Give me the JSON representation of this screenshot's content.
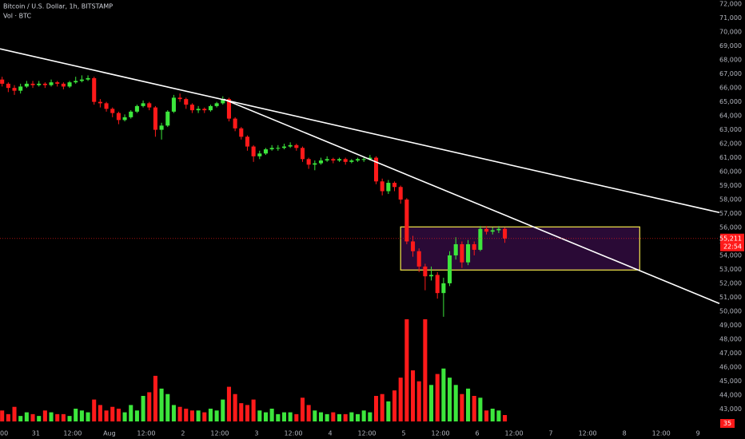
{
  "chart_data": {
    "type": "candlestick",
    "title": "Bitcoin / U.S. Dollar, 1h, BITSTAMP",
    "subtitle": "Vol · BTC",
    "up_color": "#3ce63c",
    "down_color": "#ff1a1a",
    "x": [
      13,
      15,
      17,
      19,
      21,
      23,
      25,
      27,
      29,
      31,
      33,
      35,
      37,
      39,
      41,
      43,
      45,
      47,
      49,
      51,
      53,
      55,
      57,
      59,
      61,
      63,
      65,
      67,
      69,
      71,
      73,
      75,
      77,
      79,
      81,
      83,
      85,
      87,
      89,
      91,
      93,
      95,
      97,
      99,
      101,
      103,
      105,
      107,
      109,
      111,
      113,
      115,
      117,
      119,
      121,
      123,
      125,
      127,
      129,
      131,
      133,
      135,
      137,
      139,
      141,
      143,
      145,
      147,
      149,
      151,
      153,
      155,
      157,
      159,
      161,
      163,
      165,
      167,
      169,
      171,
      173,
      175,
      177
    ],
    "open": [
      66600,
      66300,
      66000,
      65800,
      66100,
      66300,
      66200,
      66300,
      66200,
      66400,
      66300,
      66100,
      66400,
      66500,
      66600,
      66700,
      65000,
      64900,
      64500,
      64200,
      63700,
      63900,
      64300,
      64700,
      64900,
      64600,
      63000,
      63300,
      64300,
      65300,
      65200,
      64800,
      64400,
      64500,
      64400,
      64700,
      64900,
      65200,
      63800,
      63100,
      62500,
      61800,
      61100,
      61300,
      61600,
      61700,
      61700,
      61800,
      61900,
      61700,
      60900,
      60500,
      60600,
      60800,
      60900,
      60800,
      60900,
      60700,
      60800,
      60900,
      60900,
      61000,
      59300,
      58600,
      59200,
      58900,
      58000,
      55000,
      54300,
      53200,
      52500,
      52600,
      51300,
      52000,
      54000,
      54800,
      53500,
      54800,
      54400,
      55900,
      55700,
      55800,
      55900
    ],
    "high": [
      66800,
      66400,
      66200,
      66300,
      66500,
      66500,
      66500,
      66400,
      66600,
      66500,
      66400,
      66500,
      66800,
      66900,
      66900,
      66800,
      65200,
      65000,
      64600,
      64300,
      64100,
      64400,
      64800,
      65100,
      65000,
      64700,
      63500,
      64400,
      65500,
      65600,
      65300,
      64900,
      64700,
      64600,
      64800,
      65000,
      65400,
      65300,
      63900,
      63200,
      62600,
      61900,
      61500,
      61700,
      61900,
      61900,
      62000,
      62100,
      62000,
      61800,
      61000,
      60800,
      61000,
      61100,
      61000,
      61000,
      61000,
      60900,
      61000,
      61100,
      61200,
      61100,
      59500,
      59400,
      59300,
      59000,
      58100,
      55400,
      54500,
      53400,
      53200,
      52800,
      52400,
      54300,
      55300,
      55000,
      55100,
      55000,
      56100,
      56100,
      56000,
      56100,
      56000
    ],
    "low": [
      66100,
      65700,
      65500,
      65600,
      66000,
      66000,
      66100,
      66000,
      66100,
      66100,
      65900,
      66000,
      66300,
      66400,
      66500,
      64800,
      64600,
      64300,
      63900,
      63400,
      63600,
      63800,
      64200,
      64600,
      64400,
      62500,
      62300,
      63200,
      64200,
      65000,
      64500,
      64200,
      64200,
      64200,
      64300,
      64600,
      64800,
      63600,
      62900,
      62300,
      61500,
      60700,
      60900,
      61200,
      61500,
      61500,
      61600,
      61700,
      61500,
      60700,
      60200,
      60100,
      60500,
      60700,
      60600,
      60700,
      60500,
      60600,
      60700,
      60700,
      60800,
      59100,
      58300,
      58400,
      58600,
      57700,
      54800,
      53900,
      52800,
      51500,
      52200,
      50900,
      49600,
      51800,
      53700,
      53100,
      53300,
      54000,
      54300,
      55500,
      55500,
      55600,
      54900
    ],
    "close": [
      66300,
      66000,
      65800,
      66100,
      66300,
      66200,
      66300,
      66200,
      66400,
      66300,
      66100,
      66400,
      66500,
      66600,
      66700,
      65000,
      64900,
      64500,
      64200,
      63700,
      63900,
      64300,
      64700,
      64900,
      64600,
      63000,
      63300,
      64300,
      65300,
      65200,
      64800,
      64400,
      64500,
      64400,
      64700,
      64900,
      65200,
      63800,
      63100,
      62500,
      61800,
      61100,
      61300,
      61600,
      61700,
      61700,
      61800,
      61900,
      61700,
      60900,
      60500,
      60600,
      60800,
      60900,
      60800,
      60900,
      60700,
      60800,
      60900,
      60900,
      61000,
      59300,
      58600,
      59200,
      58900,
      58000,
      55000,
      54300,
      53200,
      52500,
      52600,
      51300,
      52000,
      54000,
      54800,
      53500,
      54800,
      54400,
      55900,
      55700,
      55800,
      55900,
      55211
    ],
    "volume": [
      60,
      40,
      80,
      30,
      50,
      40,
      30,
      60,
      50,
      40,
      40,
      30,
      70,
      60,
      50,
      120,
      90,
      60,
      80,
      70,
      50,
      90,
      60,
      140,
      160,
      250,
      180,
      150,
      90,
      80,
      70,
      60,
      60,
      50,
      70,
      60,
      120,
      190,
      150,
      100,
      90,
      120,
      60,
      50,
      70,
      40,
      50,
      50,
      40,
      130,
      90,
      60,
      50,
      40,
      50,
      40,
      40,
      50,
      40,
      60,
      50,
      140,
      150,
      110,
      170,
      240,
      560,
      280,
      220,
      560,
      200,
      260,
      290,
      240,
      200,
      150,
      180,
      140,
      130,
      60,
      70,
      60,
      35
    ],
    "last_price": {
      "value": 55211,
      "label": "55,211"
    },
    "countdown": "22:54",
    "xlim": [
      12.3,
      247
    ],
    "xticks": [
      {
        "value": 12,
        "label": "00"
      },
      {
        "value": 24,
        "label": "31"
      },
      {
        "value": 36,
        "label": "12:00"
      },
      {
        "value": 48,
        "label": "Aug"
      },
      {
        "value": 60,
        "label": "12:00"
      },
      {
        "value": 72,
        "label": "2"
      },
      {
        "value": 84,
        "label": "12:00"
      },
      {
        "value": 96,
        "label": "3"
      },
      {
        "value": 108,
        "label": "12:00"
      },
      {
        "value": 120,
        "label": "4"
      },
      {
        "value": 132,
        "label": "12:00"
      },
      {
        "value": 144,
        "label": "5"
      },
      {
        "value": 156,
        "label": "12:00"
      },
      {
        "value": 168,
        "label": "6"
      },
      {
        "value": 180,
        "label": "12:00"
      },
      {
        "value": 192,
        "label": "7"
      },
      {
        "value": 204,
        "label": "12:00"
      },
      {
        "value": 216,
        "label": "8"
      },
      {
        "value": 228,
        "label": "12:00"
      },
      {
        "value": 240,
        "label": "9"
      }
    ],
    "ylim": [
      42100,
      72300
    ],
    "yticks": [
      {
        "value": 43000,
        "label": "43,000"
      },
      {
        "value": 44000,
        "label": "44,000"
      },
      {
        "value": 45000,
        "label": "45,000"
      },
      {
        "value": 46000,
        "label": "46,000"
      },
      {
        "value": 47000,
        "label": "47,000"
      },
      {
        "value": 48000,
        "label": "48,000"
      },
      {
        "value": 49000,
        "label": "49,000"
      },
      {
        "value": 50000,
        "label": "50,000"
      },
      {
        "value": 51000,
        "label": "51,000"
      },
      {
        "value": 52000,
        "label": "52,000"
      },
      {
        "value": 53000,
        "label": "53,000"
      },
      {
        "value": 54000,
        "label": "54,000"
      },
      {
        "value": 55000,
        "label": "55,000"
      },
      {
        "value": 56000,
        "label": "56,000"
      },
      {
        "value": 57000,
        "label": "57,000"
      },
      {
        "value": 58000,
        "label": "58,000"
      },
      {
        "value": 59000,
        "label": "59,000"
      },
      {
        "value": 60000,
        "label": "60,000"
      },
      {
        "value": 61000,
        "label": "61,000"
      },
      {
        "value": 62000,
        "label": "62,000"
      },
      {
        "value": 63000,
        "label": "63,000"
      },
      {
        "value": 64000,
        "label": "64,000"
      },
      {
        "value": 65000,
        "label": "65,000"
      },
      {
        "value": 66000,
        "label": "66,000"
      },
      {
        "value": 67000,
        "label": "67,000"
      },
      {
        "value": 68000,
        "label": "68,000"
      },
      {
        "value": 69000,
        "label": "69,000"
      },
      {
        "value": 70000,
        "label": "70,000"
      },
      {
        "value": 71000,
        "label": "71,000"
      },
      {
        "value": 72000,
        "label": "72,000"
      }
    ],
    "trendlines": [
      {
        "color": "#ffffff",
        "x": [
          12.3,
          247
        ],
        "y": [
          68800,
          57070
        ]
      },
      {
        "color": "#ffffff",
        "x": [
          85.3,
          247
        ],
        "y": [
          65190,
          50550
        ]
      }
    ],
    "zone": {
      "border": "#f5e94b",
      "fill": "#2a0a36",
      "x": [
        143,
        221
      ],
      "y": [
        56040,
        52950
      ]
    }
  }
}
